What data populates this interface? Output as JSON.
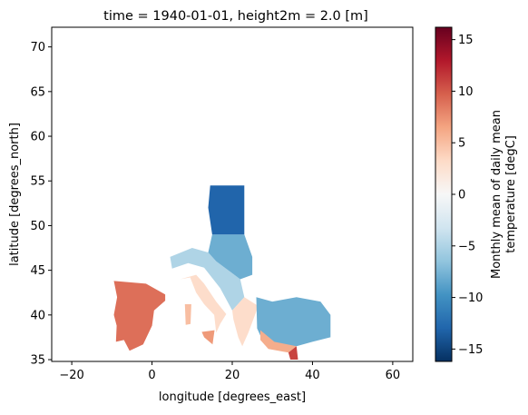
{
  "chart_data": {
    "type": "heatmap",
    "title": "time = 1940-01-01, height2m = 2.0 [m]",
    "xlabel": "longitude [degrees_east]",
    "ylabel": "latitude [degrees_north]",
    "xlim": [
      -25,
      65
    ],
    "ylim": [
      34.8,
      72.2
    ],
    "xticks": [
      "−20",
      "0",
      "20",
      "40",
      "60"
    ],
    "xtick_values": [
      -20,
      0,
      20,
      40,
      60
    ],
    "yticks": [
      "35",
      "40",
      "45",
      "50",
      "55",
      "60",
      "65",
      "70"
    ],
    "ytick_values": [
      35,
      40,
      45,
      50,
      55,
      60,
      65,
      70
    ],
    "grid": false,
    "colorbar": {
      "label_line1": "Monthly mean of daily mean",
      "label_line2": "temperature [degC]",
      "vmin": -16.2,
      "vmax": 16.2,
      "ticks": [
        "−15",
        "−10",
        "−5",
        "0",
        "5",
        "10",
        "15"
      ],
      "tick_values": [
        -15,
        -10,
        -5,
        0,
        5,
        10,
        15
      ],
      "colormap": "RdBu_r",
      "colors": [
        "#053061",
        "#2166ac",
        "#4393c3",
        "#92c5de",
        "#d1e5f0",
        "#f7f7f7",
        "#fddbc7",
        "#f4a582",
        "#d6604d",
        "#b2182b",
        "#67001f"
      ]
    },
    "regions": [
      {
        "name": "Iberia",
        "polygon": [
          [
            -9.5,
            43.8
          ],
          [
            -1.5,
            43.5
          ],
          [
            3.3,
            42.3
          ],
          [
            3.3,
            41.6
          ],
          [
            0.5,
            40.5
          ],
          [
            0,
            38.8
          ],
          [
            -2.2,
            36.7
          ],
          [
            -5.6,
            36.0
          ],
          [
            -7.0,
            37.2
          ],
          [
            -9.0,
            37.0
          ],
          [
            -8.8,
            38.8
          ],
          [
            -9.5,
            40.0
          ],
          [
            -8.7,
            42.0
          ]
        ],
        "value": 9
      },
      {
        "name": "Italy",
        "polygon": [
          [
            7.0,
            44.0
          ],
          [
            11.0,
            44.5
          ],
          [
            13.0,
            43.5
          ],
          [
            16.0,
            41.5
          ],
          [
            18.5,
            40.1
          ],
          [
            17.0,
            39.0
          ],
          [
            16.0,
            38.0
          ],
          [
            15.5,
            40.0
          ],
          [
            13.0,
            41.2
          ],
          [
            11.0,
            42.5
          ],
          [
            9.5,
            44.2
          ]
        ],
        "value": 3
      },
      {
        "name": "Sicily",
        "polygon": [
          [
            12.4,
            38.1
          ],
          [
            15.6,
            38.3
          ],
          [
            15.1,
            36.7
          ],
          [
            13.0,
            37.5
          ]
        ],
        "value": 7
      },
      {
        "name": "Sardinia",
        "polygon": [
          [
            8.2,
            41.2
          ],
          [
            9.8,
            41.2
          ],
          [
            9.6,
            39.0
          ],
          [
            8.4,
            38.9
          ]
        ],
        "value": 5
      },
      {
        "name": "Alps-Balkans",
        "polygon": [
          [
            4.5,
            46.5
          ],
          [
            10.0,
            47.5
          ],
          [
            14.0,
            47.0
          ],
          [
            16.0,
            46.0
          ],
          [
            19.0,
            45.0
          ],
          [
            22.0,
            44.0
          ],
          [
            23.0,
            42.0
          ],
          [
            20.0,
            40.5
          ],
          [
            17.0,
            43.0
          ],
          [
            13.0,
            45.3
          ],
          [
            9.0,
            45.8
          ],
          [
            5.0,
            45.2
          ]
        ],
        "value": -5
      },
      {
        "name": "Central-block",
        "polygon": [
          [
            15.0,
            49.0
          ],
          [
            23.0,
            49.0
          ],
          [
            25.0,
            46.5
          ],
          [
            25.0,
            44.5
          ],
          [
            22.0,
            44.0
          ],
          [
            19.0,
            45.0
          ],
          [
            16.0,
            46.0
          ],
          [
            14.0,
            47.0
          ]
        ],
        "value": -8
      },
      {
        "name": "North-block",
        "polygon": [
          [
            14.5,
            54.5
          ],
          [
            23.0,
            54.5
          ],
          [
            23.0,
            49.0
          ],
          [
            15.0,
            49.0
          ],
          [
            14.0,
            52.0
          ]
        ],
        "value": -13
      },
      {
        "name": "Greece",
        "polygon": [
          [
            20.0,
            40.5
          ],
          [
            23.0,
            42.0
          ],
          [
            26.5,
            41.0
          ],
          [
            24.0,
            38.0
          ],
          [
            22.5,
            36.5
          ],
          [
            21.5,
            37.5
          ],
          [
            20.3,
            39.5
          ]
        ],
        "value": 3
      },
      {
        "name": "Anatolia",
        "polygon": [
          [
            26.0,
            42.0
          ],
          [
            30.0,
            41.5
          ],
          [
            36.0,
            42.0
          ],
          [
            42.0,
            41.5
          ],
          [
            44.5,
            40.0
          ],
          [
            44.5,
            37.5
          ],
          [
            40.0,
            37.0
          ],
          [
            36.0,
            36.5
          ],
          [
            32.0,
            36.3
          ],
          [
            28.0,
            36.7
          ],
          [
            26.2,
            38.5
          ]
        ],
        "value": -8
      },
      {
        "name": "Turkey-south-coast",
        "polygon": [
          [
            27.0,
            38.3
          ],
          [
            30.5,
            37.0
          ],
          [
            36.0,
            36.5
          ],
          [
            34.0,
            35.8
          ],
          [
            29.0,
            36.2
          ],
          [
            27.0,
            37.2
          ]
        ],
        "value": 6
      },
      {
        "name": "Levant",
        "polygon": [
          [
            34.0,
            35.8
          ],
          [
            36.0,
            36.5
          ],
          [
            36.4,
            35.0
          ],
          [
            34.5,
            35.0
          ]
        ],
        "value": 11
      }
    ]
  }
}
